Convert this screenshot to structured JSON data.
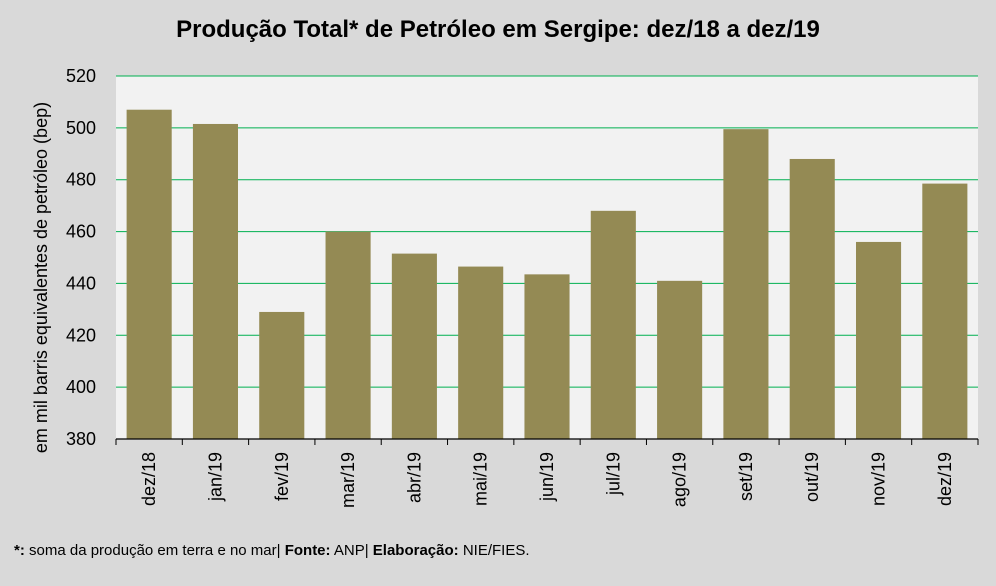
{
  "chart_data": {
    "type": "bar",
    "title": "Produção Total* de Petróleo em Sergipe:  dez/18 a dez/19",
    "xlabel": "",
    "ylabel": "em mil barris equivalentes de petróleo (bep)",
    "categories": [
      "dez/18",
      "jan/19",
      "fev/19",
      "mar/19",
      "abr/19",
      "mai/19",
      "jun/19",
      "jul/19",
      "ago/19",
      "set/19",
      "out/19",
      "nov/19",
      "dez/19"
    ],
    "values": [
      507,
      501.5,
      429,
      460,
      451.5,
      446.5,
      443.5,
      468,
      441,
      499.5,
      488,
      456,
      478.5
    ],
    "ylim": [
      380,
      520
    ],
    "yticks": [
      380,
      400,
      420,
      440,
      460,
      480,
      500,
      520
    ],
    "grid": true,
    "colors": {
      "bar": "#948a54",
      "grid": "#00b050",
      "plot_bg": "#f2f2f2",
      "page_bg": "#d9d9d9"
    }
  },
  "footnote": {
    "star": "*:",
    "text1": " soma da produção em terra e no mar| ",
    "fonte_label": "Fonte:",
    "text2": " ANP| ",
    "elab_label": "Elaboração:",
    "text3": " NIE/FIES."
  }
}
